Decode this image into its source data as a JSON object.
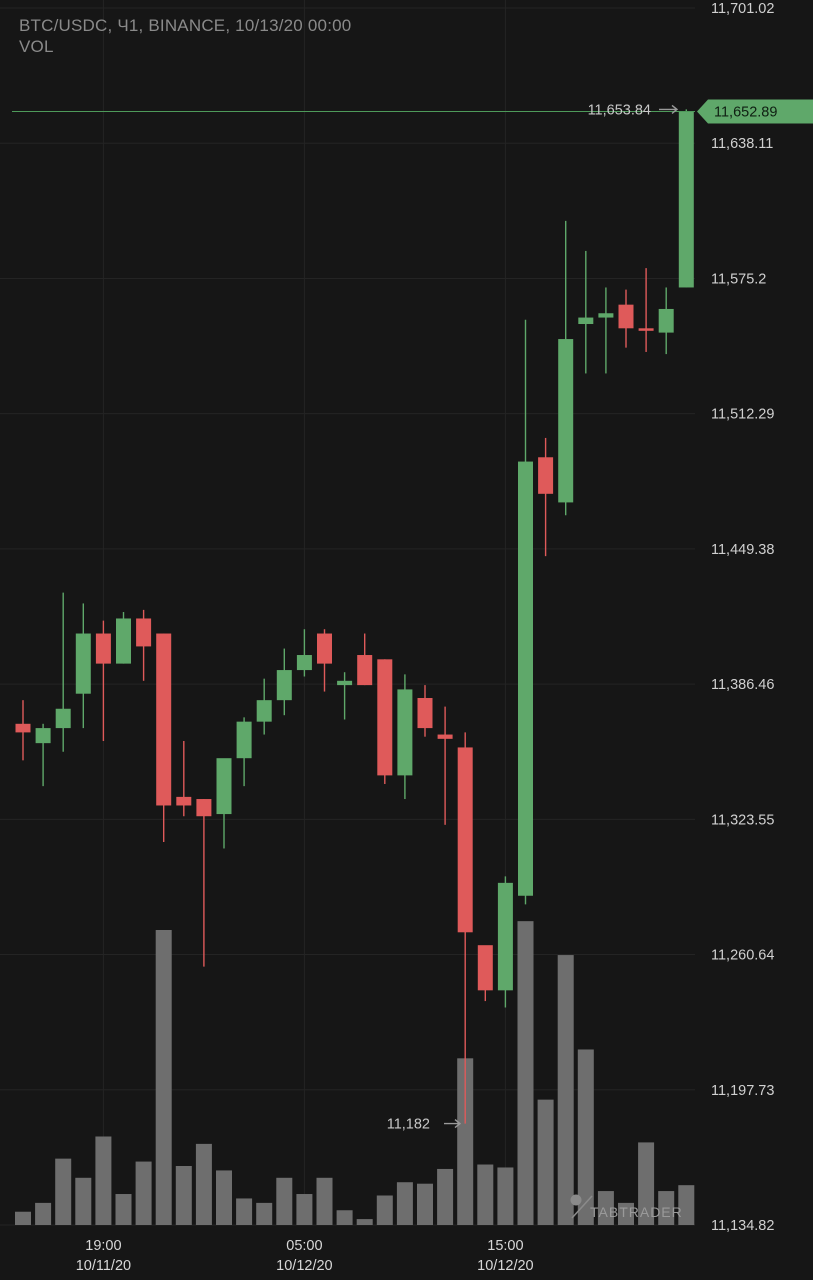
{
  "header": {
    "title": "BTC/USDC, Ч1, BINANCE, 10/13/20 00:00",
    "indicator": "VOL"
  },
  "watermark": "TABTRADER",
  "colors": {
    "background": "#161616",
    "grid": "#242424",
    "up": "#5fa86a",
    "down": "#df5a5a",
    "volume": "#6e6e6e",
    "price_line": "#4e9a5a"
  },
  "chart_data": {
    "type": "candlestick",
    "interval": "1h",
    "y_axis": {
      "ticks": [
        "11,701.02",
        "11,638.11",
        "11,575.2",
        "11,512.29",
        "11,449.38",
        "11,386.46",
        "11,323.55",
        "11,260.64",
        "11,197.73",
        "11,134.82"
      ],
      "range": [
        11134.82,
        11701.02
      ],
      "position": "right"
    },
    "x_axis": {
      "ticks": [
        {
          "time": "19:00",
          "date": "10/11/20",
          "index": 4
        },
        {
          "time": "05:00",
          "date": "10/12/20",
          "index": 14
        },
        {
          "time": "15:00",
          "date": "10/12/20",
          "index": 24
        }
      ]
    },
    "last_price": "11,652.89",
    "last_price_value": 11652.89,
    "high_marker": {
      "label": "11,653.84",
      "value": 11653.84,
      "index": 33
    },
    "low_marker": {
      "label": "11,182",
      "value": 11182,
      "index": 22
    },
    "candles": [
      {
        "o": 11368,
        "h": 11379,
        "l": 11351,
        "c": 11364
      },
      {
        "o": 11359,
        "h": 11368,
        "l": 11339,
        "c": 11366
      },
      {
        "o": 11366,
        "h": 11429,
        "l": 11355,
        "c": 11375
      },
      {
        "o": 11382,
        "h": 11424,
        "l": 11366,
        "c": 11410
      },
      {
        "o": 11410,
        "h": 11416,
        "l": 11360,
        "c": 11396
      },
      {
        "o": 11396,
        "h": 11420,
        "l": 11396,
        "c": 11417
      },
      {
        "o": 11417,
        "h": 11421,
        "l": 11388,
        "c": 11404
      },
      {
        "o": 11410,
        "h": 11410,
        "l": 11313,
        "c": 11330
      },
      {
        "o": 11334,
        "h": 11360,
        "l": 11325,
        "c": 11330
      },
      {
        "o": 11333,
        "h": 11333,
        "l": 11255,
        "c": 11325
      },
      {
        "o": 11326,
        "h": 11348,
        "l": 11310,
        "c": 11352
      },
      {
        "o": 11352,
        "h": 11371,
        "l": 11339,
        "c": 11369
      },
      {
        "o": 11369,
        "h": 11389,
        "l": 11363,
        "c": 11379
      },
      {
        "o": 11379,
        "h": 11403,
        "l": 11372,
        "c": 11393
      },
      {
        "o": 11393,
        "h": 11412,
        "l": 11390,
        "c": 11400
      },
      {
        "o": 11410,
        "h": 11412,
        "l": 11383,
        "c": 11396
      },
      {
        "o": 11386,
        "h": 11392,
        "l": 11370,
        "c": 11388
      },
      {
        "o": 11400,
        "h": 11410,
        "l": 11386,
        "c": 11386
      },
      {
        "o": 11398,
        "h": 11398,
        "l": 11340,
        "c": 11344
      },
      {
        "o": 11344,
        "h": 11391,
        "l": 11333,
        "c": 11384
      },
      {
        "o": 11380,
        "h": 11386,
        "l": 11362,
        "c": 11366
      },
      {
        "o": 11363,
        "h": 11376,
        "l": 11321,
        "c": 11361
      },
      {
        "o": 11357,
        "h": 11364,
        "l": 11182,
        "c": 11271
      },
      {
        "o": 11265,
        "h": 11263,
        "l": 11239,
        "c": 11244
      },
      {
        "o": 11244,
        "h": 11297,
        "l": 11236,
        "c": 11294
      },
      {
        "o": 11288,
        "h": 11556,
        "l": 11284,
        "c": 11490
      },
      {
        "o": 11492,
        "h": 11501,
        "l": 11446,
        "c": 11475
      },
      {
        "o": 11471,
        "h": 11602,
        "l": 11465,
        "c": 11547
      },
      {
        "o": 11554,
        "h": 11588,
        "l": 11531,
        "c": 11557
      },
      {
        "o": 11557,
        "h": 11571,
        "l": 11531,
        "c": 11559
      },
      {
        "o": 11563,
        "h": 11570,
        "l": 11543,
        "c": 11552
      },
      {
        "o": 11552,
        "h": 11580,
        "l": 11541,
        "c": 11551
      },
      {
        "o": 11550,
        "h": 11571,
        "l": 11540,
        "c": 11561
      },
      {
        "o": 11571,
        "h": 11653.84,
        "l": 11571,
        "c": 11652.89
      }
    ],
    "volume": [
      {
        "v": 0.045
      },
      {
        "v": 0.075
      },
      {
        "v": 0.225
      },
      {
        "v": 0.16
      },
      {
        "v": 0.3
      },
      {
        "v": 0.105
      },
      {
        "v": 0.215
      },
      {
        "v": 1.0
      },
      {
        "v": 0.2
      },
      {
        "v": 0.275
      },
      {
        "v": 0.185
      },
      {
        "v": 0.09
      },
      {
        "v": 0.075
      },
      {
        "v": 0.16
      },
      {
        "v": 0.105
      },
      {
        "v": 0.16
      },
      {
        "v": 0.05
      },
      {
        "v": 0.02
      },
      {
        "v": 0.1
      },
      {
        "v": 0.145
      },
      {
        "v": 0.14
      },
      {
        "v": 0.19
      },
      {
        "v": 0.565
      },
      {
        "v": 0.205
      },
      {
        "v": 0.195
      },
      {
        "v": 1.03
      },
      {
        "v": 0.425
      },
      {
        "v": 0.915
      },
      {
        "v": 0.595
      },
      {
        "v": 0.115
      },
      {
        "v": 0.075
      },
      {
        "v": 0.28
      },
      {
        "v": 0.115
      },
      {
        "v": 0.135
      }
    ]
  }
}
